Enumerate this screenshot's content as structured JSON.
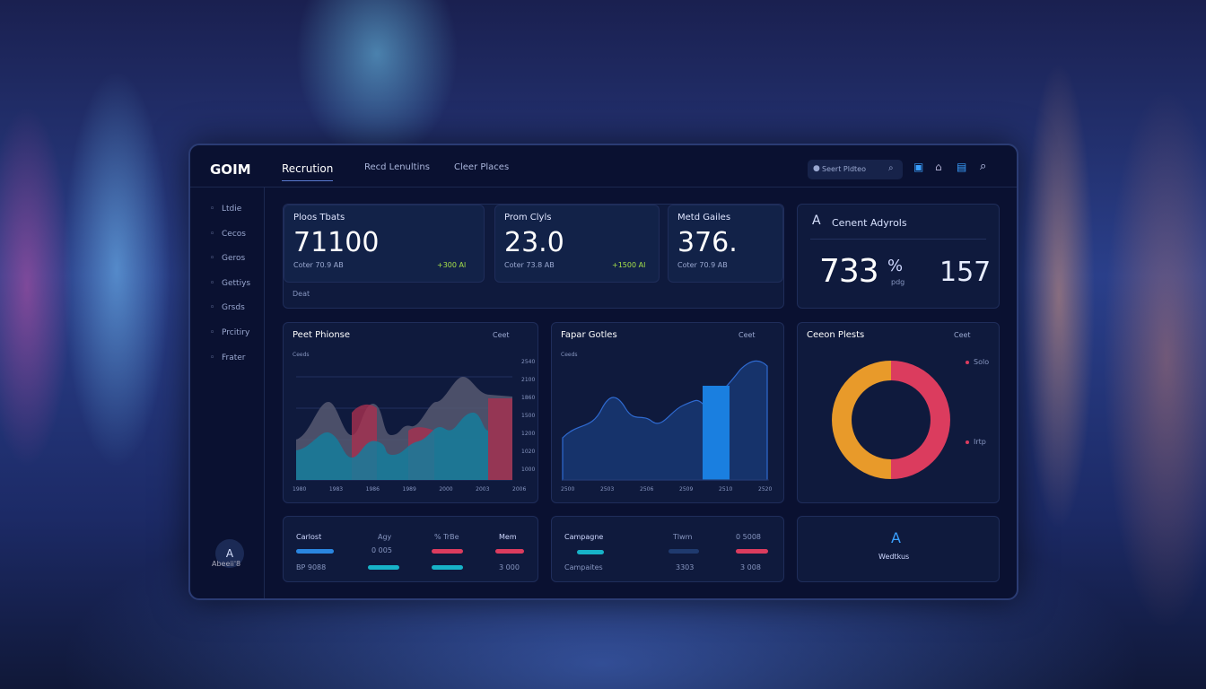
{
  "header": {
    "logo": "GOIM",
    "nav": [
      "Recrution",
      "Recd Lenultins",
      "Cleer Places"
    ],
    "search": "Seert Pldteo"
  },
  "sidebar": {
    "items": [
      "Ltdie",
      "Cecos",
      "Geros",
      "Gettiys",
      "Grsds",
      "Prcitiry",
      "Frater"
    ],
    "avatar": "A",
    "user": "Abeeii'8"
  },
  "kpis": [
    {
      "title": "Ploos Tbats",
      "value": "71100",
      "sub": "Coter 70.9 AB",
      "delta": "+300 Al"
    },
    {
      "title": "Prom Clyls",
      "value": "23.0",
      "sub": "Coter 73.8 AB",
      "delta": "+1500 Al"
    },
    {
      "title": "Metd Gailes",
      "value": "376.",
      "sub": "Coter 70.9 AB"
    }
  ],
  "kpi_note": "Deat",
  "analysis": {
    "icon": "A",
    "title": "Cenent Adyrols",
    "value": "733",
    "unit": "%",
    "sub": "pdg",
    "second": "157"
  },
  "charts": [
    {
      "title": "Peet Phionse",
      "control": "Ceet",
      "legend": "Ceeds",
      "x": [
        "1980",
        "1983",
        "1986",
        "1989",
        "2000",
        "2003",
        "2006"
      ],
      "y": [
        "2540",
        "2100",
        "1860",
        "1500",
        "1200",
        "1020",
        "1000"
      ]
    },
    {
      "title": "Fapar Gotles",
      "control": "Ceet",
      "legend": "Ceeds",
      "x": [
        "2500",
        "2503",
        "2506",
        "2509",
        "2510",
        "2520"
      ]
    },
    {
      "title": "Ceeon Plests",
      "control": "Ceet",
      "labels": [
        "Solo",
        "Irtp"
      ]
    }
  ],
  "table1": {
    "header": [
      "Carlost",
      "Agy",
      "% TrBe",
      "Mem"
    ],
    "row": [
      "0 005",
      "BP 9088",
      "3 000"
    ]
  },
  "table2": {
    "header": [
      "Campagne",
      "Tlwm",
      "0 5008"
    ],
    "row": [
      "Campaites",
      "3303",
      "3 008"
    ]
  },
  "widget": {
    "icon": "A",
    "label": "Wedtkus"
  }
}
